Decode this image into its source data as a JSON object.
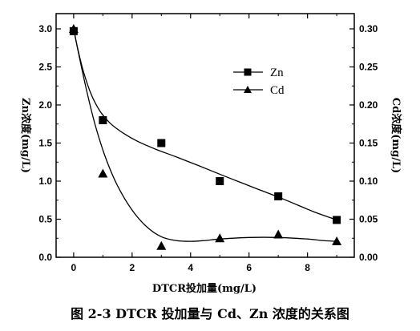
{
  "figure_caption": "图 2-3   DTCR 投加量与 Cd、Zn 浓度的关系图",
  "chart_data": {
    "type": "scatter",
    "xlabel": "DTCR投加量(mg/L)",
    "ylabel_left": "Zn浓度(mg/L)",
    "ylabel_right": "Cd浓度(mg/L)",
    "xlim": [
      -0.6,
      9.6
    ],
    "ylim_left": [
      0,
      3.2
    ],
    "ylim_right": [
      0,
      0.32
    ],
    "x_ticks": [
      "0",
      "2",
      "4",
      "6",
      "8"
    ],
    "y_left_ticks": [
      "0.0",
      "0.5",
      "1.0",
      "1.5",
      "2.0",
      "2.5",
      "3.0"
    ],
    "y_right_ticks": [
      "0.00",
      "0.05",
      "0.10",
      "0.15",
      "0.20",
      "0.25",
      "0.30"
    ],
    "grid": false,
    "legend_position": "upper-right",
    "series": [
      {
        "name": "Zn",
        "axis": "left",
        "marker": "square",
        "x": [
          0,
          1,
          3,
          5,
          7,
          9
        ],
        "y": [
          2.97,
          1.8,
          1.5,
          1.0,
          0.8,
          0.49
        ],
        "fit_curve": {
          "x": [
            0,
            0.15,
            0.35,
            0.6,
            0.9,
            1.25,
            1.7,
            2.2,
            2.8,
            3.5,
            4.3,
            5.2,
            6.2,
            7.2,
            8.2,
            9.0
          ],
          "y": [
            3.0,
            2.72,
            2.42,
            2.14,
            1.92,
            1.76,
            1.63,
            1.52,
            1.42,
            1.32,
            1.2,
            1.06,
            0.91,
            0.76,
            0.6,
            0.49
          ]
        }
      },
      {
        "name": "Cd",
        "axis": "right",
        "marker": "triangle",
        "x": [
          0,
          1,
          3,
          5,
          7,
          9
        ],
        "y": [
          0.3,
          0.11,
          0.015,
          0.025,
          0.03,
          0.021
        ],
        "fit_curve": {
          "x": [
            0,
            0.2,
            0.45,
            0.75,
            1.1,
            1.5,
            2.0,
            2.5,
            3.0,
            3.5,
            4.0,
            4.5,
            5.0,
            6.0,
            7.0,
            8.0,
            8.5,
            9.0
          ],
          "y": [
            0.3,
            0.262,
            0.218,
            0.172,
            0.13,
            0.094,
            0.062,
            0.04,
            0.027,
            0.022,
            0.021,
            0.022,
            0.024,
            0.026,
            0.026,
            0.024,
            0.022,
            0.021
          ]
        }
      }
    ]
  }
}
